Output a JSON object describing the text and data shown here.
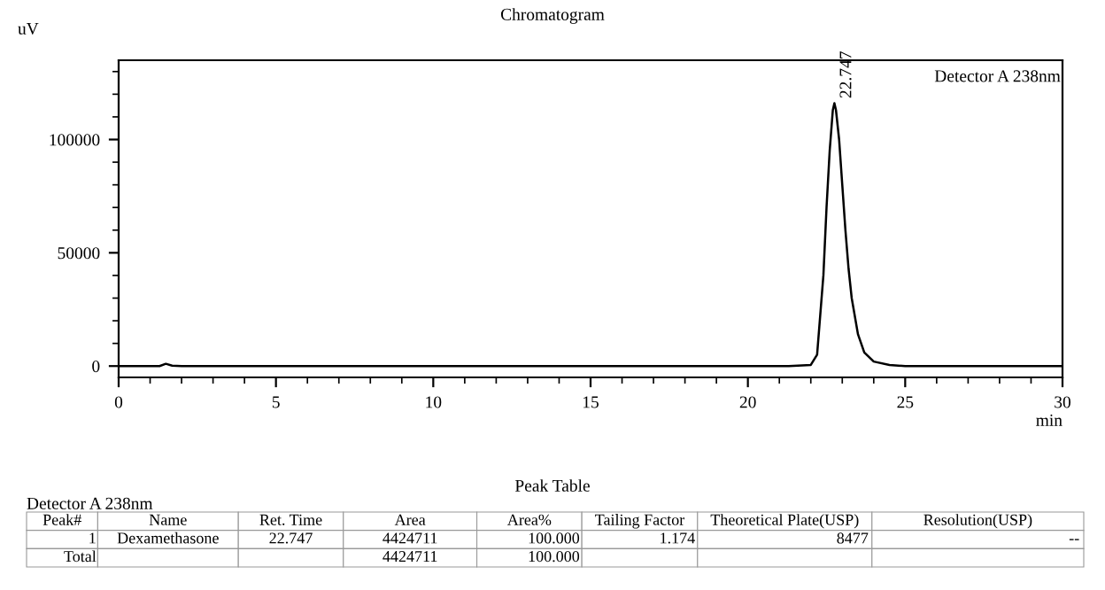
{
  "chart_data": [
    {
      "type": "line",
      "title": "Chromatogram",
      "xlabel": "min",
      "ylabel": "uV",
      "x": [
        0,
        1.3,
        1.5,
        1.7,
        2.0,
        10,
        21.3,
        22.0,
        22.2,
        22.4,
        22.5,
        22.6,
        22.7,
        22.75,
        22.8,
        22.9,
        23.0,
        23.1,
        23.2,
        23.3,
        23.5,
        23.7,
        24.0,
        24.5,
        25.0,
        30
      ],
      "series": [
        {
          "color": "#000000",
          "values": [
            0,
            0,
            1000,
            200,
            0,
            0,
            0,
            500,
            5000,
            40000,
            70000,
            95000,
            113000,
            116000,
            113000,
            100000,
            80000,
            60000,
            43000,
            30000,
            14000,
            6000,
            2000,
            500,
            0,
            0
          ]
        }
      ],
      "xlim": [
        0,
        30
      ],
      "ylim": [
        -5000,
        135000
      ],
      "xticks": [
        0,
        {
          "value": 1,
          "label": null
        },
        {
          "value": 2,
          "label": null
        },
        {
          "value": 3,
          "label": null
        },
        {
          "value": 4,
          "label": null
        },
        5,
        {
          "value": 6,
          "label": null
        },
        {
          "value": 7,
          "label": null
        },
        {
          "value": 8,
          "label": null
        },
        {
          "value": 9,
          "label": null
        },
        10,
        {
          "value": 11,
          "label": null
        },
        {
          "value": 12,
          "label": null
        },
        {
          "value": 13,
          "label": null
        },
        {
          "value": 14,
          "label": null
        },
        15,
        {
          "value": 16,
          "label": null
        },
        {
          "value": 17,
          "label": null
        },
        {
          "value": 18,
          "label": null
        },
        {
          "value": 19,
          "label": null
        },
        20,
        {
          "value": 21,
          "label": null
        },
        {
          "value": 22,
          "label": null
        },
        {
          "value": 23,
          "label": null
        },
        {
          "value": 24,
          "label": null
        },
        25,
        {
          "value": 26,
          "label": null
        },
        {
          "value": 27,
          "label": null
        },
        {
          "value": 28,
          "label": null
        },
        {
          "value": 29,
          "label": null
        },
        30
      ],
      "yticks": [
        0,
        {
          "value": 10000,
          "label": null
        },
        {
          "value": 20000,
          "label": null
        },
        {
          "value": 30000,
          "label": null
        },
        {
          "value": 40000,
          "label": null
        },
        50000,
        {
          "value": 60000,
          "label": null
        },
        {
          "value": 70000,
          "label": null
        },
        {
          "value": 80000,
          "label": null
        },
        {
          "value": 90000,
          "label": null
        },
        100000,
        {
          "value": 110000,
          "label": null
        },
        {
          "value": 120000,
          "label": null
        },
        {
          "value": 130000,
          "label": null
        }
      ],
      "grid": false,
      "legend": false,
      "marker": "none",
      "line_style": "solid",
      "annotations": [
        {
          "text": "22.747",
          "x": 22.747,
          "y": 116000
        },
        "Detector A 238nm"
      ]
    },
    {
      "type": "other",
      "title": "Peak Table",
      "subtitle": "Detector A 238nm",
      "categories": [
        "Peak#",
        "Name",
        "Ret. Time",
        "Area",
        "Area%",
        "Tailing Factor",
        "Theoretical Plate(USP)",
        "Resolution(USP)"
      ],
      "annotations": [
        "1",
        "Dexamethasone",
        "22.747",
        "4424711",
        "100.000",
        "1.174",
        "8477",
        "--",
        "Total",
        null,
        null,
        "4424711",
        "100.000",
        null,
        null,
        null
      ]
    }
  ]
}
